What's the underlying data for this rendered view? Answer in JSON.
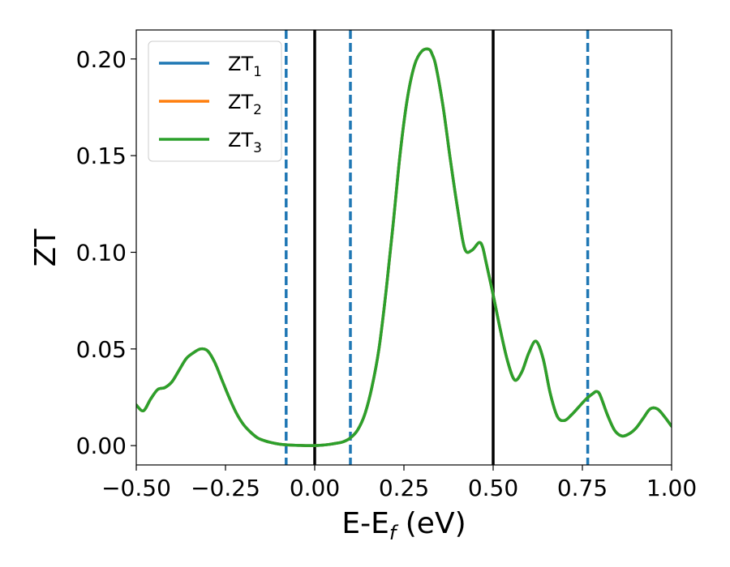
{
  "chart_data": {
    "type": "line",
    "xlabel": "E-E",
    "xlabel_sub": "f",
    "xlabel_unit": " (eV)",
    "ylabel": "ZT",
    "xlim": [
      -0.5,
      1.0
    ],
    "ylim": [
      -0.01,
      0.215
    ],
    "x_ticks": [
      -0.5,
      -0.25,
      0.0,
      0.25,
      0.5,
      0.75,
      1.0
    ],
    "x_tick_labels": [
      "−0.50",
      "−0.25",
      "0.00",
      "0.25",
      "0.50",
      "0.75",
      "1.00"
    ],
    "y_ticks": [
      0.0,
      0.05,
      0.1,
      0.15,
      0.2
    ],
    "y_tick_labels": [
      "0.00",
      "0.05",
      "0.10",
      "0.15",
      "0.20"
    ],
    "grid": false,
    "legend_position": "top-left",
    "series": [
      {
        "name": "ZT",
        "sub": "1",
        "color": "#1f77b4"
      },
      {
        "name": "ZT",
        "sub": "2",
        "color": "#ff7f0e"
      },
      {
        "name": "ZT",
        "sub": "3",
        "color": "#2ca02c"
      }
    ],
    "curve": {
      "x": [
        -0.5,
        -0.48,
        -0.46,
        -0.44,
        -0.42,
        -0.4,
        -0.38,
        -0.36,
        -0.34,
        -0.32,
        -0.3,
        -0.28,
        -0.26,
        -0.24,
        -0.22,
        -0.2,
        -0.18,
        -0.16,
        -0.14,
        -0.12,
        -0.1,
        -0.08,
        -0.06,
        -0.04,
        -0.02,
        0.0,
        0.02,
        0.04,
        0.06,
        0.08,
        0.1,
        0.12,
        0.14,
        0.16,
        0.18,
        0.2,
        0.22,
        0.24,
        0.26,
        0.28,
        0.3,
        0.32,
        0.33,
        0.34,
        0.36,
        0.38,
        0.4,
        0.42,
        0.44,
        0.46,
        0.47,
        0.48,
        0.5,
        0.52,
        0.54,
        0.56,
        0.58,
        0.6,
        0.62,
        0.64,
        0.66,
        0.68,
        0.7,
        0.72,
        0.74,
        0.76,
        0.78,
        0.79,
        0.8,
        0.82,
        0.84,
        0.86,
        0.88,
        0.9,
        0.92,
        0.94,
        0.96,
        0.98,
        1.0
      ],
      "y": [
        0.021,
        0.018,
        0.024,
        0.029,
        0.03,
        0.033,
        0.039,
        0.045,
        0.048,
        0.05,
        0.049,
        0.043,
        0.034,
        0.025,
        0.017,
        0.011,
        0.007,
        0.004,
        0.0025,
        0.0015,
        0.0008,
        0.0004,
        0.0002,
        0.0001,
        0.0,
        0.0,
        0.0002,
        0.0006,
        0.0012,
        0.002,
        0.004,
        0.008,
        0.016,
        0.03,
        0.05,
        0.08,
        0.115,
        0.152,
        0.18,
        0.197,
        0.204,
        0.205,
        0.202,
        0.196,
        0.175,
        0.148,
        0.123,
        0.102,
        0.101,
        0.105,
        0.103,
        0.095,
        0.078,
        0.06,
        0.044,
        0.034,
        0.038,
        0.048,
        0.054,
        0.045,
        0.027,
        0.015,
        0.013,
        0.016,
        0.02,
        0.024,
        0.027,
        0.028,
        0.026,
        0.016,
        0.008,
        0.005,
        0.006,
        0.009,
        0.014,
        0.019,
        0.019,
        0.015,
        0.01
      ]
    },
    "vlines_solid": [
      0.0,
      0.5
    ],
    "vlines_dashed": [
      -0.08,
      0.1,
      0.765
    ]
  }
}
